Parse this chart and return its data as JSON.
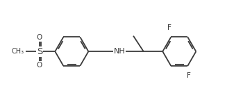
{
  "bg_color": "#ffffff",
  "line_color": "#3a3a3a",
  "lw": 1.3,
  "fs": 7.5,
  "figsize": [
    3.5,
    1.6
  ],
  "dpi": 100,
  "ring_r": 0.62,
  "xlim": [
    0.2,
    9.2
  ],
  "ylim": [
    0.5,
    4.2
  ]
}
